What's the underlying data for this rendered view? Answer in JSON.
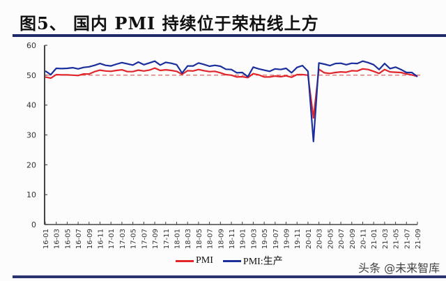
{
  "figure": {
    "title": "图5、 国内 PMI 持续位于荣枯线上方",
    "watermark": "头条 @未来智库"
  },
  "legend": {
    "items": [
      {
        "label": "PMI",
        "color": "#e0262b"
      },
      {
        "label": "PMI:生产",
        "color": "#1b2f9c"
      }
    ]
  },
  "colors": {
    "pmi": "#e0262b",
    "production": "#1b2f9c",
    "reference": "#d9534f",
    "axis": "#444444",
    "rule": "#1f2a6b"
  },
  "chart_data": {
    "type": "line",
    "title": "图5、 国内 PMI 持续位于荣枯线上方",
    "xlabel": "",
    "ylabel": "",
    "ylim": [
      0,
      60
    ],
    "yticks": [
      0,
      10,
      20,
      30,
      40,
      50,
      60
    ],
    "grid": false,
    "legend_position": "bottom",
    "reference_line": {
      "y": 50,
      "style": "dashed"
    },
    "x": [
      "16-01",
      "16-02",
      "16-03",
      "16-04",
      "16-05",
      "16-06",
      "16-07",
      "16-08",
      "16-09",
      "16-10",
      "16-11",
      "16-12",
      "17-01",
      "17-02",
      "17-03",
      "17-04",
      "17-05",
      "17-06",
      "17-07",
      "17-08",
      "17-09",
      "17-10",
      "17-11",
      "17-12",
      "18-01",
      "18-02",
      "18-03",
      "18-04",
      "18-05",
      "18-06",
      "18-07",
      "18-08",
      "18-09",
      "18-10",
      "18-11",
      "18-12",
      "19-01",
      "19-02",
      "19-03",
      "19-04",
      "19-05",
      "19-06",
      "19-07",
      "19-08",
      "19-09",
      "19-10",
      "19-11",
      "19-12",
      "20-01",
      "20-02",
      "20-03",
      "20-04",
      "20-05",
      "20-06",
      "20-07",
      "20-08",
      "20-09",
      "20-10",
      "20-11",
      "20-12",
      "21-01",
      "21-02",
      "21-03",
      "21-04",
      "21-05",
      "21-06",
      "21-07",
      "21-08",
      "21-09"
    ],
    "xtick_labels": [
      "16-01",
      "16-03",
      "16-05",
      "16-07",
      "16-09",
      "16-11",
      "17-01",
      "17-03",
      "17-05",
      "17-07",
      "17-09",
      "17-11",
      "18-01",
      "18-03",
      "18-05",
      "18-07",
      "18-09",
      "18-11",
      "19-01",
      "19-03",
      "19-05",
      "19-07",
      "19-09",
      "19-11",
      "20-01",
      "20-03",
      "20-05",
      "20-07",
      "20-09",
      "20-11",
      "21-01",
      "21-03",
      "21-05",
      "21-07",
      "21-09"
    ],
    "series": [
      {
        "name": "PMI",
        "color": "#e0262b",
        "values": [
          49.4,
          49.0,
          50.2,
          50.1,
          50.1,
          50.0,
          49.9,
          50.4,
          50.4,
          51.2,
          51.7,
          51.4,
          51.3,
          51.6,
          51.8,
          51.2,
          51.2,
          51.7,
          51.4,
          51.7,
          52.4,
          51.6,
          51.8,
          51.6,
          51.3,
          50.3,
          51.5,
          51.4,
          51.9,
          51.5,
          51.2,
          51.3,
          50.8,
          50.2,
          50.0,
          49.4,
          49.5,
          49.2,
          50.5,
          50.1,
          49.4,
          49.4,
          49.7,
          49.5,
          49.8,
          49.3,
          50.2,
          50.2,
          50.0,
          35.7,
          52.0,
          50.8,
          50.6,
          50.9,
          51.1,
          51.0,
          51.5,
          51.4,
          52.1,
          51.9,
          51.3,
          50.6,
          51.9,
          51.1,
          51.0,
          50.9,
          50.4,
          50.1,
          49.6
        ]
      },
      {
        "name": "PMI:生产",
        "color": "#1b2f9c",
        "values": [
          51.4,
          50.2,
          52.3,
          52.2,
          52.3,
          52.5,
          52.1,
          52.6,
          52.8,
          53.3,
          53.9,
          53.3,
          53.1,
          53.7,
          54.2,
          53.8,
          53.4,
          54.4,
          53.5,
          54.1,
          54.7,
          53.4,
          54.3,
          54.0,
          53.5,
          50.7,
          53.1,
          53.1,
          54.1,
          53.6,
          53.0,
          53.3,
          53.0,
          52.0,
          51.9,
          50.8,
          50.9,
          49.5,
          52.7,
          52.1,
          51.7,
          51.3,
          52.1,
          51.9,
          52.3,
          50.8,
          52.6,
          53.2,
          51.3,
          27.8,
          54.1,
          53.7,
          53.2,
          53.9,
          54.0,
          53.5,
          54.0,
          53.9,
          54.7,
          54.2,
          53.5,
          51.9,
          53.9,
          52.2,
          52.7,
          51.9,
          50.9,
          50.9,
          49.5
        ]
      }
    ]
  }
}
